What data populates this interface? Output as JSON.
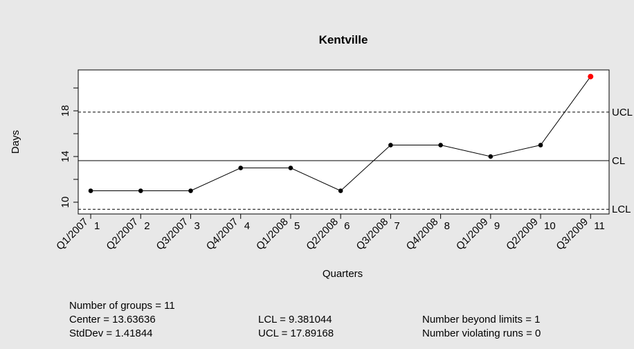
{
  "chart_data": {
    "type": "qcc",
    "title": "Kentville",
    "xlabel": "Quarters",
    "ylabel": "Days",
    "categories": [
      "Q1/2007",
      "Q2/2007",
      "Q3/2007",
      "Q4/2007",
      "Q1/2008",
      "Q2/2008",
      "Q3/2008",
      "Q4/2008",
      "Q1/2009",
      "Q2/2009",
      "Q3/2009"
    ],
    "x": [
      1,
      2,
      3,
      4,
      5,
      6,
      7,
      8,
      9,
      10,
      11
    ],
    "values": [
      11,
      11,
      11,
      13,
      13,
      11,
      15,
      15,
      14,
      15,
      21
    ],
    "color": "#000000",
    "violation_color": "#ff0000",
    "xlim": [
      0.75,
      11.37
    ],
    "ylim": [
      8.97,
      21.58
    ],
    "yticks": [
      10,
      14,
      18
    ],
    "minor_yticks": [
      12,
      16,
      20
    ],
    "limits": [
      {
        "name": "UCL",
        "value": 17.89168,
        "dashed": true
      },
      {
        "name": "CL",
        "value": 13.63636,
        "dashed": false
      },
      {
        "name": "LCL",
        "value": 9.381044,
        "dashed": true
      }
    ],
    "stats": [
      [
        "Number of groups = 11",
        "Center = 13.63636",
        "StdDev = 1.41844"
      ],
      [
        "LCL = 9.381044",
        "UCL = 17.89168"
      ],
      [
        "Number beyond limits = 1",
        "Number violating runs = 0"
      ]
    ]
  }
}
